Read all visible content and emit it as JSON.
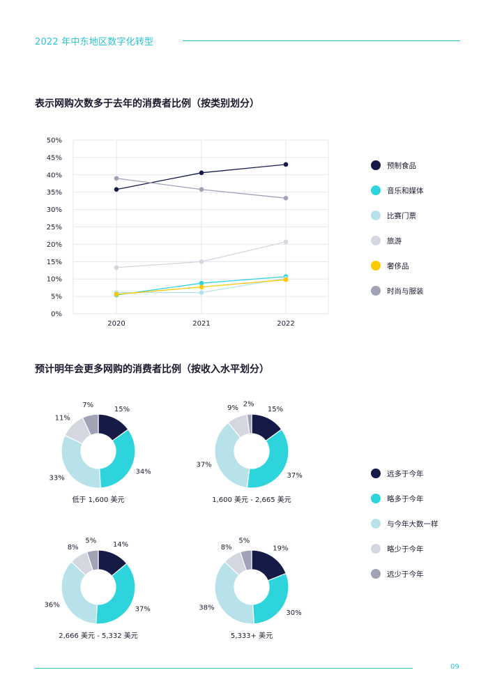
{
  "header": {
    "title": "2022 年中东地区数字化转型"
  },
  "footer": {
    "page_number": "09"
  },
  "colors": {
    "navy": "#151a47",
    "teal": "#2dd4db",
    "light_blue": "#b8e2ea",
    "light_gray": "#d4d6e0",
    "yellow": "#fcc800",
    "gray": "#a1a2b6",
    "accent": "#2bc4d0"
  },
  "chart_data": [
    {
      "type": "line",
      "title": "表示网购次数多于去年的消费者比例（按类别划分）",
      "x": [
        "2020",
        "2021",
        "2022"
      ],
      "ylim": [
        0,
        50
      ],
      "yticks": [
        "0%",
        "5%",
        "10%",
        "15%",
        "20%",
        "25%",
        "30%",
        "35%",
        "40%",
        "45%",
        "50%"
      ],
      "grid": true,
      "legend_position": "right",
      "series": [
        {
          "name": "预制食品",
          "color": "#151a47",
          "values": [
            35.8,
            40.6,
            43.0
          ]
        },
        {
          "name": "音乐和媒体",
          "color": "#2dd4db",
          "values": [
            5.4,
            8.8,
            10.7
          ]
        },
        {
          "name": "比赛门票",
          "color": "#b8e2ea",
          "values": [
            6.1,
            6.1,
            10.2
          ]
        },
        {
          "name": "旅游",
          "color": "#d4d6e0",
          "values": [
            13.3,
            15.0,
            20.7
          ]
        },
        {
          "name": "奢侈品",
          "color": "#fcc800",
          "values": [
            5.6,
            7.7,
            9.8
          ]
        },
        {
          "name": "时尚与服装",
          "color": "#a1a2b6",
          "values": [
            39.0,
            35.8,
            33.3
          ]
        }
      ]
    },
    {
      "type": "pie",
      "title": "预计明年会更多网购的消费者比例（按收入水平划分）",
      "legend_position": "right",
      "categories": [
        "远多于今年",
        "略多于今年",
        "与今年大数一样",
        "略少于今年",
        "远少于今年"
      ],
      "category_colors": [
        "#151a47",
        "#2dd4db",
        "#b8e2ea",
        "#d4d6e0",
        "#a1a2b6"
      ],
      "series": [
        {
          "name": "低于 1,600 美元",
          "values": [
            15,
            34,
            33,
            11,
            7
          ]
        },
        {
          "name": "1,600 美元 - 2,665 美元",
          "values": [
            15,
            37,
            37,
            9,
            2
          ]
        },
        {
          "name": "2,666 美元 - 5,332 美元",
          "values": [
            14,
            37,
            36,
            8,
            5
          ]
        },
        {
          "name": "5,333+ 美元",
          "values": [
            19,
            30,
            38,
            8,
            5
          ]
        }
      ]
    }
  ]
}
